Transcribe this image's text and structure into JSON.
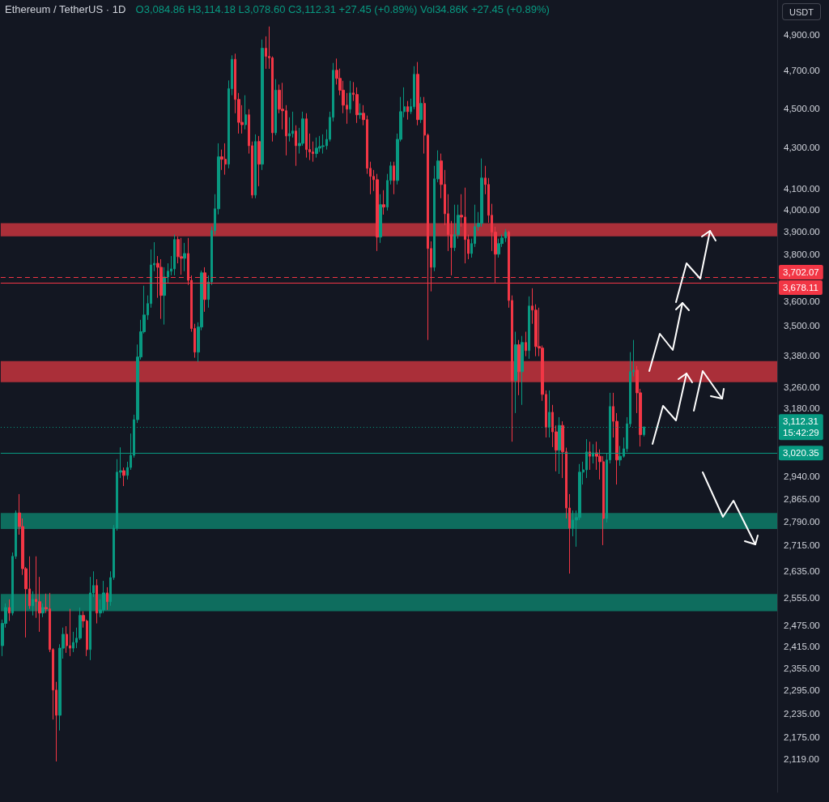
{
  "chart_data": {
    "type": "candlestick",
    "title": "Ethereum / TetherUS · 1D",
    "subtitle": "O3,084.86 H3,114.18 L3,078.60 C3,112.31 +27.45 (+0.89%) Vol34.86K +27.45 (+0.89%)",
    "ylabel": "USDT",
    "log": true,
    "ylim": [
      2040,
      5100
    ],
    "yticks": [
      {
        "value": 4900,
        "label": "4,900.00"
      },
      {
        "value": 4700,
        "label": "4,700.00"
      },
      {
        "value": 4500,
        "label": "4,500.00"
      },
      {
        "value": 4300,
        "label": "4,300.00"
      },
      {
        "value": 4100,
        "label": "4,100.00"
      },
      {
        "value": 4000,
        "label": "4,000.00"
      },
      {
        "value": 3900,
        "label": "3,900.00"
      },
      {
        "value": 3800,
        "label": "3,800.00"
      },
      {
        "value": 3600,
        "label": "3,600.00"
      },
      {
        "value": 3500,
        "label": "3,500.00"
      },
      {
        "value": 3380,
        "label": "3,380.00"
      },
      {
        "value": 3260,
        "label": "3,260.00"
      },
      {
        "value": 3180,
        "label": "3,180.00"
      },
      {
        "value": 2940,
        "label": "2,940.00"
      },
      {
        "value": 2865,
        "label": "2,865.00"
      },
      {
        "value": 2790,
        "label": "2,790.00"
      },
      {
        "value": 2715,
        "label": "2,715.00"
      },
      {
        "value": 2635,
        "label": "2,635.00"
      },
      {
        "value": 2555,
        "label": "2,555.00"
      },
      {
        "value": 2475,
        "label": "2,475.00"
      },
      {
        "value": 2415,
        "label": "2,415.00"
      },
      {
        "value": 2355,
        "label": "2,355.00"
      },
      {
        "value": 2295,
        "label": "2,295.00"
      },
      {
        "value": 2235,
        "label": "2,235.00"
      },
      {
        "value": 2175,
        "label": "2,175.00"
      },
      {
        "value": 2119,
        "label": "2,119.00"
      }
    ],
    "categories": [
      null,
      null,
      null,
      null,
      null,
      null,
      null,
      null,
      null,
      null,
      null,
      null,
      null,
      null,
      null,
      null,
      null,
      null,
      null,
      null,
      null,
      null,
      null,
      null,
      null,
      null,
      null,
      null,
      null,
      null,
      null,
      null,
      null,
      null,
      null,
      null,
      null,
      null,
      null,
      null,
      null,
      null,
      null,
      null,
      null,
      null,
      null,
      null,
      null,
      null,
      null,
      null,
      null,
      null,
      null,
      null,
      null,
      null,
      null,
      null,
      null,
      null,
      null,
      null,
      null,
      null,
      null,
      null,
      null,
      null,
      null,
      null,
      null,
      null,
      null,
      null,
      null,
      null,
      null,
      null,
      null,
      null,
      null,
      null,
      null,
      null,
      null,
      null,
      null,
      null,
      null,
      null,
      null,
      null,
      null,
      null,
      null,
      null,
      null,
      null,
      null,
      null,
      null,
      null,
      null,
      null,
      null,
      null,
      null,
      null,
      null,
      null,
      null,
      null,
      null,
      null,
      null,
      null,
      null,
      null,
      null,
      null,
      null,
      null,
      null,
      null,
      null,
      null,
      null,
      null,
      null,
      null,
      null,
      null,
      null,
      null,
      null,
      null,
      null,
      null,
      null,
      null,
      null,
      null,
      null,
      null,
      null,
      null,
      null,
      null,
      null,
      null,
      null,
      null,
      null,
      null,
      null,
      null,
      null,
      null,
      null,
      null,
      null,
      null,
      null,
      null,
      null,
      null,
      null,
      null,
      null,
      null,
      null,
      null,
      null,
      null,
      null,
      null,
      null,
      null,
      null,
      null,
      null,
      null,
      null,
      null,
      null,
      null,
      null,
      null,
      null,
      null,
      null,
      null,
      null,
      null,
      null,
      null,
      null,
      null,
      null,
      null,
      null,
      null,
      null,
      null,
      null,
      null,
      null,
      null,
      null,
      null,
      null,
      null,
      null,
      null,
      null,
      null,
      null,
      null,
      null,
      null,
      null,
      null,
      null,
      null,
      null,
      null,
      null,
      null
    ],
    "ohlc": [
      [
        2417,
        2491,
        2388,
        2480
      ],
      [
        2480,
        2538,
        2468,
        2526
      ],
      [
        2526,
        2550,
        2487,
        2510
      ],
      [
        2510,
        2692,
        2503,
        2680
      ],
      [
        2680,
        2826,
        2672,
        2818
      ],
      [
        2818,
        2880,
        2748,
        2774
      ],
      [
        2774,
        2800,
        2623,
        2642
      ],
      [
        2642,
        2647,
        2440,
        2581
      ],
      [
        2581,
        2680,
        2522,
        2531
      ],
      [
        2531,
        2574,
        2503,
        2550
      ],
      [
        2550,
        2680,
        2496,
        2543
      ],
      [
        2543,
        2617,
        2456,
        2510
      ],
      [
        2510,
        2538,
        2498,
        2526
      ],
      [
        2526,
        2567,
        2510,
        2522
      ],
      [
        2522,
        2569,
        2399,
        2406
      ],
      [
        2406,
        2410,
        2219,
        2296
      ],
      [
        2296,
        2318,
        2114,
        2230
      ],
      [
        2230,
        2421,
        2191,
        2410
      ],
      [
        2410,
        2468,
        2381,
        2449
      ],
      [
        2449,
        2472,
        2397,
        2417
      ],
      [
        2417,
        2522,
        2388,
        2410
      ],
      [
        2410,
        2456,
        2399,
        2426
      ],
      [
        2426,
        2468,
        2410,
        2438
      ],
      [
        2438,
        2526,
        2433,
        2503
      ],
      [
        2503,
        2515,
        2468,
        2487
      ],
      [
        2487,
        2491,
        2388,
        2406
      ],
      [
        2406,
        2617,
        2377,
        2569
      ],
      [
        2569,
        2634,
        2557,
        2591
      ],
      [
        2591,
        2610,
        2480,
        2510
      ],
      [
        2510,
        2550,
        2498,
        2519
      ],
      [
        2519,
        2605,
        2510,
        2569
      ],
      [
        2569,
        2586,
        2519,
        2543
      ],
      [
        2543,
        2634,
        2531,
        2615
      ],
      [
        2615,
        2779,
        2608,
        2769
      ],
      [
        2769,
        2999,
        2761,
        2954
      ],
      [
        2954,
        3040,
        2934,
        2959
      ],
      [
        2959,
        2970,
        2907,
        2943
      ],
      [
        2943,
        2990,
        2929,
        2970
      ],
      [
        2970,
        3089,
        2962,
        3012
      ],
      [
        3012,
        3157,
        3004,
        3139
      ],
      [
        3139,
        3424,
        3127,
        3375
      ],
      [
        3375,
        3523,
        3365,
        3475
      ],
      [
        3475,
        3665,
        3468,
        3543
      ],
      [
        3543,
        3624,
        3523,
        3590
      ],
      [
        3590,
        3822,
        3573,
        3754
      ],
      [
        3754,
        3854,
        3727,
        3761
      ],
      [
        3761,
        3793,
        3614,
        3744
      ],
      [
        3744,
        3779,
        3527,
        3624
      ],
      [
        3624,
        3744,
        3504,
        3702
      ],
      [
        3702,
        3761,
        3675,
        3727
      ],
      [
        3727,
        3793,
        3709,
        3737
      ],
      [
        3737,
        3888,
        3709,
        3866
      ],
      [
        3866,
        3880,
        3761,
        3790
      ],
      [
        3790,
        3873,
        3712,
        3783
      ],
      [
        3783,
        3851,
        3727,
        3804
      ],
      [
        3804,
        3873,
        3668,
        3688
      ],
      [
        3688,
        3709,
        3475,
        3488
      ],
      [
        3488,
        3507,
        3372,
        3394
      ],
      [
        3394,
        3513,
        3356,
        3494
      ],
      [
        3494,
        3730,
        3481,
        3720
      ],
      [
        3720,
        3744,
        3556,
        3607
      ],
      [
        3607,
        3709,
        3573,
        3681
      ],
      [
        3681,
        3924,
        3668,
        3906
      ],
      [
        3906,
        4074,
        3888,
        4006
      ],
      [
        4006,
        4321,
        3980,
        4254
      ],
      [
        4254,
        4290,
        4190,
        4242
      ],
      [
        4242,
        4321,
        4167,
        4218
      ],
      [
        4218,
        4647,
        4198,
        4603
      ],
      [
        4603,
        4784,
        4568,
        4762
      ],
      [
        4762,
        4793,
        4474,
        4546
      ],
      [
        4546,
        4580,
        4370,
        4427
      ],
      [
        4427,
        4516,
        4370,
        4415
      ],
      [
        4415,
        4568,
        4391,
        4466
      ],
      [
        4466,
        4495,
        4270,
        4309
      ],
      [
        4309,
        4330,
        4055,
        4070
      ],
      [
        4070,
        4366,
        4055,
        4330
      ],
      [
        4330,
        4358,
        4112,
        4218
      ],
      [
        4218,
        4872,
        4190,
        4823
      ],
      [
        4823,
        4890,
        4710,
        4778
      ],
      [
        4778,
        4946,
        4710,
        4770
      ],
      [
        4770,
        4778,
        4330,
        4374
      ],
      [
        4374,
        4654,
        4362,
        4595
      ],
      [
        4595,
        4625,
        4474,
        4495
      ],
      [
        4495,
        4634,
        4391,
        4487
      ],
      [
        4487,
        4516,
        4261,
        4358
      ],
      [
        4358,
        4453,
        4330,
        4370
      ],
      [
        4370,
        4482,
        4350,
        4383
      ],
      [
        4383,
        4412,
        4210,
        4309
      ],
      [
        4309,
        4399,
        4270,
        4321
      ],
      [
        4321,
        4482,
        4309,
        4445
      ],
      [
        4445,
        4474,
        4250,
        4290
      ],
      [
        4290,
        4370,
        4238,
        4278
      ],
      [
        4278,
        4330,
        4230,
        4270
      ],
      [
        4270,
        4350,
        4250,
        4297
      ],
      [
        4297,
        4358,
        4278,
        4305
      ],
      [
        4305,
        4366,
        4270,
        4309
      ],
      [
        4309,
        4391,
        4290,
        4341
      ],
      [
        4341,
        4482,
        4330,
        4453
      ],
      [
        4453,
        4742,
        4432,
        4702
      ],
      [
        4702,
        4766,
        4625,
        4658
      ],
      [
        4658,
        4711,
        4568,
        4595
      ],
      [
        4595,
        4645,
        4474,
        4516
      ],
      [
        4516,
        4580,
        4420,
        4495
      ],
      [
        4495,
        4645,
        4474,
        4580
      ],
      [
        4580,
        4638,
        4538,
        4572
      ],
      [
        4572,
        4610,
        4424,
        4466
      ],
      [
        4466,
        4525,
        4445,
        4474
      ],
      [
        4474,
        4516,
        4412,
        4441
      ],
      [
        4441,
        4462,
        4171,
        4198
      ],
      [
        4198,
        4230,
        4074,
        4159
      ],
      [
        4159,
        4190,
        4089,
        4143
      ],
      [
        4143,
        4171,
        3815,
        3877
      ],
      [
        3877,
        4074,
        3851,
        4025
      ],
      [
        4025,
        4093,
        3979,
        4014
      ],
      [
        4014,
        4171,
        3998,
        4139
      ],
      [
        4139,
        4230,
        4120,
        4210
      ],
      [
        4210,
        4230,
        4074,
        4139
      ],
      [
        4139,
        4370,
        4120,
        4341
      ],
      [
        4341,
        4559,
        4330,
        4482
      ],
      [
        4482,
        4610,
        4453,
        4508
      ],
      [
        4508,
        4538,
        4441,
        4482
      ],
      [
        4482,
        4550,
        4470,
        4508
      ],
      [
        4508,
        4724,
        4495,
        4680
      ],
      [
        4680,
        4747,
        4412,
        4441
      ],
      [
        4441,
        4559,
        4424,
        4525
      ],
      [
        4525,
        4559,
        4270,
        4362
      ],
      [
        4362,
        4370,
        3442,
        3826
      ],
      [
        3826,
        3858,
        3641,
        3744
      ],
      [
        3744,
        4210,
        3727,
        4147
      ],
      [
        4147,
        4286,
        4131,
        4234
      ],
      [
        4234,
        4270,
        4055,
        4120
      ],
      [
        4120,
        4190,
        3931,
        3983
      ],
      [
        3983,
        4074,
        3815,
        3888
      ],
      [
        3888,
        3950,
        3709,
        3830
      ],
      [
        3830,
        4025,
        3815,
        3888
      ],
      [
        3888,
        4025,
        3870,
        3976
      ],
      [
        3976,
        4074,
        3924,
        3968
      ],
      [
        3968,
        4105,
        3761,
        3866
      ],
      [
        3866,
        3888,
        3779,
        3804
      ],
      [
        3804,
        3870,
        3786,
        3848
      ],
      [
        3848,
        4025,
        3833,
        3924
      ],
      [
        3924,
        3991,
        3906,
        3939
      ],
      [
        3939,
        4246,
        3924,
        4151
      ],
      [
        4151,
        4210,
        4074,
        4120
      ],
      [
        4120,
        4151,
        3942,
        3976
      ],
      [
        3976,
        4029,
        3815,
        3899
      ],
      [
        3899,
        3924,
        3678,
        3801
      ],
      [
        3801,
        3870,
        3786,
        3848
      ],
      [
        3848,
        3888,
        3833,
        3873
      ],
      [
        3873,
        3913,
        3855,
        3899
      ],
      [
        3899,
        3906,
        3573,
        3603
      ],
      [
        3603,
        3624,
        3060,
        3284
      ],
      [
        3284,
        3475,
        3163,
        3423
      ],
      [
        3423,
        3442,
        3229,
        3318
      ],
      [
        3318,
        3458,
        3193,
        3432
      ],
      [
        3432,
        3475,
        3378,
        3400
      ],
      [
        3400,
        3620,
        3368,
        3580
      ],
      [
        3580,
        3654,
        3507,
        3563
      ],
      [
        3563,
        3587,
        3378,
        3416
      ],
      [
        3416,
        3573,
        3378,
        3410
      ],
      [
        3410,
        3420,
        3208,
        3232
      ],
      [
        3232,
        3247,
        3075,
        3112
      ],
      [
        3112,
        3247,
        3075,
        3166
      ],
      [
        3166,
        3193,
        3041,
        3095
      ],
      [
        3095,
        3118,
        2957,
        3030
      ],
      [
        3030,
        3148,
        2948,
        3118
      ],
      [
        3118,
        3133,
        2934,
        3024
      ],
      [
        3024,
        3039,
        2800,
        2834
      ],
      [
        2834,
        2880,
        2627,
        2769
      ],
      [
        2769,
        2826,
        2743,
        2795
      ],
      [
        2795,
        2826,
        2710,
        2803
      ],
      [
        2803,
        2982,
        2795,
        2954
      ],
      [
        2954,
        2990,
        2912,
        2962
      ],
      [
        2962,
        3069,
        2934,
        3024
      ],
      [
        3024,
        3060,
        2962,
        3009
      ],
      [
        3009,
        3051,
        2984,
        3021
      ],
      [
        3021,
        3060,
        2962,
        3009
      ],
      [
        3009,
        3033,
        2929,
        2990
      ],
      [
        2990,
        3009,
        2715,
        2800
      ],
      [
        2800,
        3018,
        2787,
        2996
      ],
      [
        2996,
        3238,
        2984,
        3187
      ],
      [
        3187,
        3238,
        3075,
        3133
      ],
      [
        3133,
        3163,
        2912,
        2996
      ],
      [
        2996,
        3045,
        2976,
        3009
      ],
      [
        3009,
        3075,
        3004,
        3035
      ],
      [
        3035,
        3148,
        3024,
        3124
      ],
      [
        3124,
        3394,
        3112,
        3318
      ],
      [
        3318,
        3442,
        3300,
        3324
      ],
      [
        3324,
        3340,
        3163,
        3238
      ],
      [
        3238,
        3253,
        3043,
        3084.86
      ],
      [
        3084.86,
        3114.18,
        3078.6,
        3112.31
      ],
      null,
      null,
      null,
      null,
      null,
      null,
      null,
      null,
      null,
      null,
      null,
      null,
      null,
      null,
      null,
      null,
      null,
      null,
      null,
      null,
      null,
      null,
      null,
      null,
      null,
      null,
      null,
      null,
      null,
      null,
      null,
      null,
      null,
      null,
      null,
      null,
      null,
      null,
      null
    ],
    "colors": [
      "#089981",
      "#089981",
      "#f23645",
      "#089981",
      "#089981",
      "#f23645",
      "#f23645",
      "#f23645",
      "#f23645",
      "#089981",
      "#f23645",
      "#f23645",
      "#089981",
      "#f23645",
      "#f23645",
      "#f23645",
      "#f23645",
      "#089981",
      "#089981",
      "#f23645",
      "#f23645",
      "#089981",
      "#089981",
      "#089981",
      "#f23645",
      "#f23645",
      "#089981",
      "#089981",
      "#f23645",
      "#089981",
      "#089981",
      "#f23645",
      "#089981",
      "#089981",
      "#089981",
      "#089981",
      "#f23645",
      "#089981",
      "#089981",
      "#089981",
      "#089981",
      "#089981",
      "#089981",
      "#089981",
      "#089981",
      "#089981",
      "#f23645",
      "#f23645",
      "#089981",
      "#089981",
      "#089981",
      "#089981",
      "#f23645",
      "#f23645",
      "#089981",
      "#f23645",
      "#f23645",
      "#f23645",
      "#089981",
      "#089981",
      "#f23645",
      "#089981",
      "#089981",
      "#089981",
      "#089981",
      "#f23645",
      "#f23645",
      "#089981",
      "#089981",
      "#f23645",
      "#f23645",
      "#f23645",
      "#089981",
      "#f23645",
      "#f23645",
      "#089981",
      "#f23645",
      "#089981",
      "#f23645",
      "#f23645",
      "#f23645",
      "#089981",
      "#f23645",
      "#f23645",
      "#f23645",
      "#089981",
      "#089981",
      "#f23645",
      "#089981",
      "#089981",
      "#f23645",
      "#f23645",
      "#f23645",
      "#089981",
      "#089981",
      "#089981",
      "#089981",
      "#089981",
      "#089981",
      "#f23645",
      "#f23645",
      "#f23645",
      "#f23645",
      "#089981",
      "#f23645",
      "#f23645",
      "#089981",
      "#f23645",
      "#f23645",
      "#f23645",
      "#f23645",
      "#f23645",
      "#089981",
      "#f23645",
      "#089981",
      "#089981",
      "#f23645",
      "#089981",
      "#089981",
      "#089981",
      "#f23645",
      "#089981",
      "#089981",
      "#f23645",
      "#089981",
      "#f23645",
      "#f23645",
      "#f23645",
      "#089981",
      "#089981",
      "#f23645",
      "#f23645",
      "#f23645",
      "#f23645",
      "#089981",
      "#089981",
      "#f23645",
      "#f23645",
      "#f23645",
      "#089981",
      "#089981",
      "#089981",
      "#089981",
      "#f23645",
      "#f23645",
      "#f23645",
      "#f23645",
      "#089981",
      "#089981",
      "#089981",
      "#f23645",
      "#f23645",
      "#089981",
      "#f23645",
      "#089981",
      "#f23645",
      "#089981",
      "#f23645",
      "#f23645",
      "#f23645",
      "#f23645",
      "#f23645",
      "#089981",
      "#f23645",
      "#f23645",
      "#089981",
      "#f23645",
      "#f23645",
      "#f23645",
      "#089981",
      "#089981",
      "#089981",
      "#089981",
      "#089981",
      "#f23645",
      "#089981",
      "#f23645",
      "#f23645",
      "#f23645",
      "#089981",
      "#089981",
      "#f23645",
      "#f23645",
      "#089981",
      "#089981",
      "#089981",
      "#089981",
      "#089981",
      "#f23645",
      "#f23645",
      "#089981",
      null,
      null,
      null,
      null,
      null,
      null,
      null,
      null,
      null,
      null,
      null,
      null,
      null,
      null,
      null,
      null,
      null,
      null,
      null,
      null,
      null,
      null,
      null,
      null,
      null,
      null,
      null,
      null,
      null,
      null,
      null,
      null,
      null,
      null,
      null,
      null,
      null,
      null,
      null
    ],
    "ref_lines": [
      {
        "axis": "y",
        "value": 3702.07,
        "label": "3,702.07",
        "color": "#f23645",
        "line_style": "dashed"
      },
      {
        "axis": "y",
        "value": 3678.11,
        "label": "3,678.11",
        "color": "#f23645",
        "line_style": "solid"
      },
      {
        "axis": "y",
        "value": 3112.31,
        "label": "3,112.31\n15:42:29",
        "color": "#089981",
        "line_style": "dotted"
      },
      {
        "axis": "y",
        "value": 3020.35,
        "label": "3,020.35",
        "color": "#089981",
        "line_style": "solid"
      }
    ],
    "bands": [
      {
        "axis": "y",
        "from": 3880,
        "to": 3940,
        "color": "#b2303b"
      },
      {
        "axis": "y",
        "from": 3278,
        "to": 3359,
        "color": "#b2303b"
      },
      {
        "axis": "y",
        "from": 2766,
        "to": 2818,
        "color": "#0e7262"
      },
      {
        "axis": "y",
        "from": 2515,
        "to": 2566,
        "color": "#0e7262"
      }
    ]
  }
}
